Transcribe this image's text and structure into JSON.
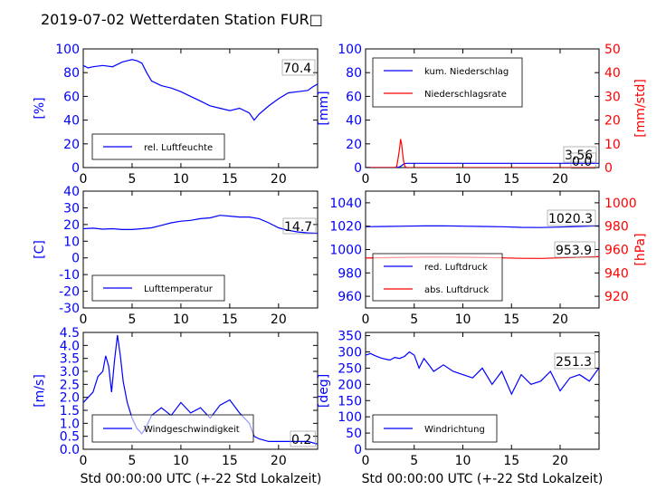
{
  "figure": {
    "title": "2019-07-02 Wetterdaten Station FUR□",
    "xlabel": "Std 00:00:00 UTC (+-22 Std Lokalzeit)"
  },
  "colors": {
    "blue": "#0000ff",
    "red": "#ff0000",
    "black": "#000000",
    "lightblue": "#8080ff"
  },
  "chart_data": [
    {
      "type": "line",
      "xlim": [
        0,
        24
      ],
      "x_ticks": [
        0,
        5,
        10,
        15,
        20
      ],
      "ylim": [
        0,
        100
      ],
      "y_ticks": [
        0,
        20,
        40,
        60,
        80,
        100
      ],
      "ylabel": "[%]",
      "series": [
        {
          "name": "rel. Luftfeuchte",
          "color": "#0000ff",
          "x": [
            0,
            0.5,
            1,
            2,
            3,
            4,
            4.5,
            5,
            5.5,
            6,
            6.5,
            7,
            8,
            9,
            10,
            11,
            12,
            13,
            14,
            15,
            16,
            17,
            17.5,
            18,
            19,
            20,
            21,
            22,
            23,
            23.5,
            24
          ],
          "y": [
            86,
            84,
            85,
            86,
            85,
            89,
            90,
            91,
            90,
            88,
            80,
            73,
            69,
            67,
            64,
            60,
            56,
            52,
            50,
            48,
            50,
            46,
            40,
            45,
            52,
            58,
            63,
            64,
            65,
            68,
            70.4
          ]
        }
      ],
      "annotation": "70.4"
    },
    {
      "type": "line",
      "xlim": [
        0,
        24
      ],
      "x_ticks": [
        0,
        5,
        10,
        15,
        20
      ],
      "ylim": [
        0,
        100
      ],
      "y_ticks": [
        0,
        20,
        40,
        60,
        80,
        100
      ],
      "ylabel": "[mm]",
      "y2lim": [
        0,
        50
      ],
      "y2_ticks": [
        0,
        10,
        20,
        30,
        40,
        50
      ],
      "y2label": "[mm/std]",
      "series": [
        {
          "name": "kum. Niederschlag",
          "color": "#0000ff",
          "axis": "left",
          "x": [
            0,
            3.2,
            3.5,
            3.7,
            3.9,
            4.0,
            4.2,
            24
          ],
          "y": [
            0,
            0,
            0.6,
            1.6,
            2.8,
            3.3,
            3.56,
            3.56
          ]
        },
        {
          "name": "Niederschlagsrate",
          "color": "#ff0000",
          "axis": "right",
          "x": [
            0,
            3.0,
            3.2,
            3.35,
            3.5,
            3.6,
            3.7,
            3.8,
            3.9,
            4.0,
            4.1,
            4.2,
            24
          ],
          "y": [
            0,
            0,
            0.5,
            4,
            8,
            12,
            10,
            6,
            3,
            1,
            0.3,
            0,
            0
          ]
        }
      ],
      "annotations": [
        "3.56",
        "0.0"
      ]
    },
    {
      "type": "line",
      "xlim": [
        0,
        24
      ],
      "x_ticks": [
        0,
        5,
        10,
        15,
        20
      ],
      "ylim": [
        -30,
        40
      ],
      "y_ticks": [
        -30,
        -20,
        -10,
        0,
        10,
        20,
        30,
        40
      ],
      "ylabel": "[C]",
      "series": [
        {
          "name": "Lufttemperatur",
          "color": "#0000ff",
          "x": [
            0,
            1,
            2,
            3,
            4,
            5,
            6,
            7,
            8,
            9,
            10,
            11,
            12,
            13,
            14,
            15,
            16,
            17,
            18,
            19,
            20,
            21,
            22,
            23,
            24
          ],
          "y": [
            17.5,
            17.8,
            17.2,
            17.5,
            17.0,
            17.0,
            17.5,
            18.0,
            19.5,
            21.0,
            22.0,
            22.5,
            23.5,
            24.0,
            25.5,
            25.0,
            24.5,
            24.5,
            23.5,
            21.0,
            18.0,
            16.5,
            15.5,
            15.0,
            14.7
          ]
        }
      ],
      "annotation": "14.7"
    },
    {
      "type": "line",
      "xlim": [
        0,
        24
      ],
      "x_ticks": [
        0,
        5,
        10,
        15,
        20
      ],
      "ylim": [
        950,
        1050
      ],
      "y_ticks": [
        960,
        980,
        1000,
        1020,
        1040
      ],
      "ylabel": "",
      "y2lim": [
        910,
        1010
      ],
      "y2_ticks": [
        920,
        940,
        960,
        980,
        1000
      ],
      "y2label": "[hPa]",
      "series": [
        {
          "name": "red. Luftdruck",
          "color": "#0000ff",
          "axis": "left",
          "x": [
            0,
            2,
            4,
            6,
            8,
            10,
            12,
            14,
            16,
            18,
            20,
            22,
            24
          ],
          "y": [
            1019.5,
            1019.8,
            1020.0,
            1020.2,
            1020.3,
            1020.0,
            1019.8,
            1019.5,
            1019.0,
            1018.8,
            1019.2,
            1019.8,
            1020.3
          ]
        },
        {
          "name": "abs. Luftdruck",
          "color": "#ff0000",
          "axis": "right",
          "x": [
            0,
            2,
            4,
            6,
            8,
            10,
            12,
            14,
            16,
            18,
            20,
            22,
            24
          ],
          "y": [
            952.7,
            953.0,
            953.3,
            953.5,
            953.6,
            953.4,
            953.2,
            952.9,
            952.5,
            952.4,
            952.9,
            953.4,
            953.9
          ]
        }
      ],
      "annotations": [
        "1020.3",
        "953.9"
      ]
    },
    {
      "type": "line",
      "xlim": [
        0,
        24
      ],
      "x_ticks": [
        0,
        5,
        10,
        15,
        20
      ],
      "ylim": [
        0,
        4.5
      ],
      "y_ticks": [
        0.0,
        0.5,
        1.0,
        1.5,
        2.0,
        2.5,
        3.0,
        3.5,
        4.0,
        4.5
      ],
      "ylabel": "[m/s]",
      "series": [
        {
          "name": "Windgeschwindigkeit",
          "color": "#0000ff",
          "x": [
            0,
            0.5,
            1,
            1.5,
            2,
            2.3,
            2.6,
            2.9,
            3.2,
            3.5,
            3.8,
            4.1,
            4.5,
            5,
            5.5,
            6,
            6.5,
            7,
            8,
            9,
            10,
            11,
            12,
            13,
            14,
            15,
            16,
            17,
            17.5,
            18,
            19,
            20,
            21,
            22,
            23,
            24
          ],
          "y": [
            1.8,
            2.0,
            2.2,
            2.8,
            3.0,
            3.6,
            3.2,
            2.2,
            3.4,
            4.4,
            3.6,
            2.6,
            1.8,
            1.2,
            0.8,
            0.6,
            0.9,
            1.3,
            1.6,
            1.3,
            1.8,
            1.4,
            1.6,
            1.2,
            1.7,
            1.9,
            1.4,
            1.0,
            0.5,
            0.4,
            0.3,
            0.3,
            0.3,
            0.3,
            0.3,
            0.2
          ]
        }
      ],
      "annotation": "0.2"
    },
    {
      "type": "line",
      "xlim": [
        0,
        24
      ],
      "x_ticks": [
        0,
        5,
        10,
        15,
        20
      ],
      "ylim": [
        0,
        360
      ],
      "y_ticks": [
        0,
        50,
        100,
        150,
        200,
        250,
        300,
        350
      ],
      "ylabel": "[deg]",
      "series": [
        {
          "name": "Windrichtung",
          "color": "#0000ff",
          "x": [
            0,
            0.5,
            1,
            1.5,
            2,
            2.5,
            3,
            3.5,
            4,
            4.5,
            5,
            5.5,
            6,
            6.5,
            7,
            8,
            9,
            10,
            11,
            12,
            13,
            14,
            15,
            16,
            17,
            18,
            19,
            20,
            21,
            22,
            23,
            24
          ],
          "y": [
            290,
            295,
            288,
            282,
            278,
            275,
            283,
            280,
            286,
            300,
            290,
            250,
            280,
            260,
            240,
            260,
            240,
            230,
            220,
            250,
            200,
            240,
            170,
            230,
            200,
            210,
            240,
            180,
            220,
            230,
            210,
            251.3
          ]
        }
      ],
      "annotation": "251.3"
    }
  ]
}
